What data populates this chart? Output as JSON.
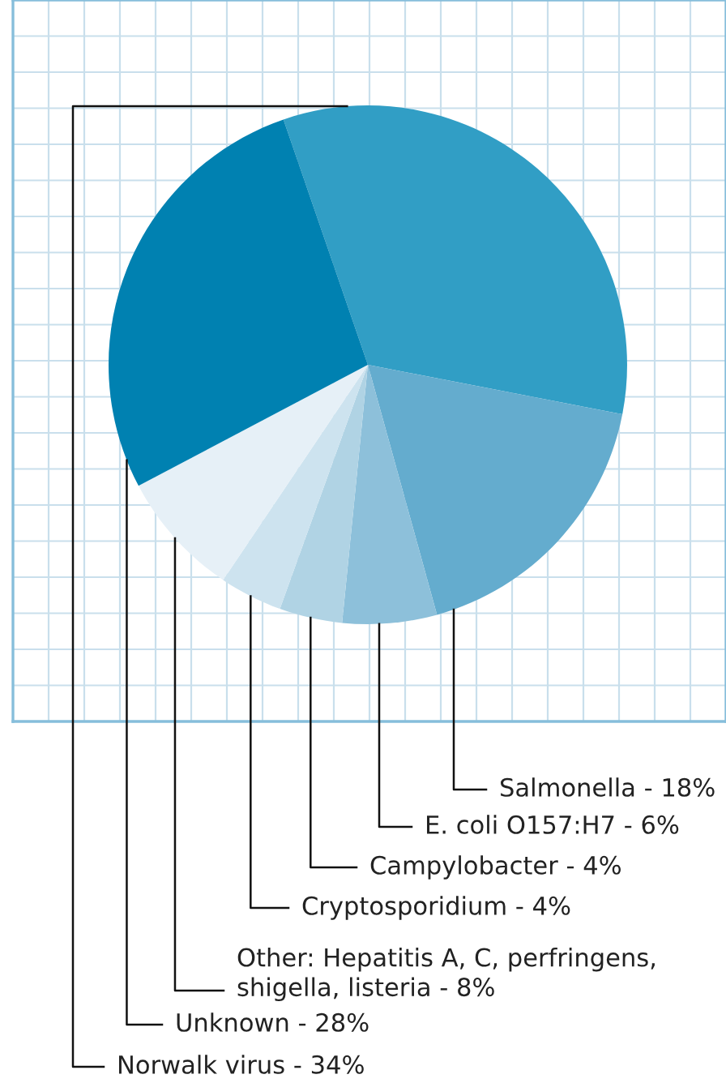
{
  "chart_data": {
    "type": "pie",
    "categories": [
      "Norwalk virus - 34%",
      "Salmonella - 18%",
      "E. coli O157:H7 - 6%",
      "Campylobacter - 4%",
      "Cryptosporidium - 4%",
      "Other: Hepatitis A, C, perfringens,\nshigella, listeria - 8%",
      "Unknown - 28%"
    ],
    "values": [
      34,
      18,
      6,
      4,
      4,
      8,
      28
    ],
    "colors": [
      "#319ec5",
      "#64acce",
      "#8dc0da",
      "#b0d3e4",
      "#cde3ef",
      "#e6f0f7",
      "#0081b1"
    ],
    "grid": true
  }
}
